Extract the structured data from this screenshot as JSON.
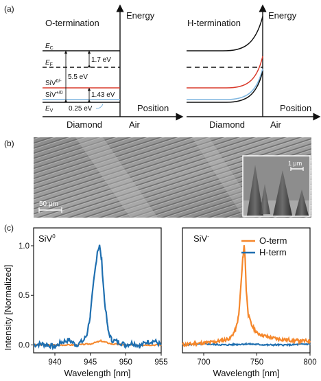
{
  "panels": {
    "a": "(a)",
    "b": "(b)",
    "c": "(c)"
  },
  "band_diagram": {
    "left": {
      "title": "O-termination",
      "energy_label": "Energy",
      "position_label": "Position",
      "diamond_label": "Diamond",
      "air_label": "Air",
      "levels": {
        "ec": "E",
        "ec_sub": "C",
        "ef": "E",
        "ef_sub": "F",
        "siv_minus": "SiV",
        "siv_minus_sup": "0/-",
        "siv_plus": "SiV",
        "siv_plus_sup": "+/0",
        "ev": "E",
        "ev_sub": "V"
      },
      "gaps": {
        "g1": "1.7 eV",
        "g2": "5.5 eV",
        "g3": "1.43 eV",
        "g4": "0.25 eV"
      }
    },
    "right": {
      "title": "H-termination",
      "energy_label": "Energy",
      "position_label": "Position",
      "diamond_label": "Diamond",
      "air_label": "Air"
    },
    "colors": {
      "siv_minus": "#d93a2b",
      "siv_plus": "#7fb6e0"
    }
  },
  "sem": {
    "scale_main": "50 μm",
    "scale_inset": "1 μm"
  },
  "spectra": {
    "ylabel": "Intensity [Normalized]",
    "colors": {
      "h_term": "#1f6fb0",
      "o_term": "#f5872b"
    },
    "left": {
      "label": "SiV",
      "label_sup": "0",
      "xlabel": "Wavelength [nm]",
      "xlim": [
        937,
        955
      ],
      "ylim": [
        -0.08,
        1.18
      ],
      "xticks": [
        940,
        945,
        950,
        955
      ],
      "yticks": [
        0.0,
        0.5,
        1.0
      ],
      "ytick_labels": [
        "0.0",
        "0.5",
        "1.0"
      ]
    },
    "right": {
      "label": "SiV",
      "label_sup": "-",
      "xlabel": "Wavelength [nm]",
      "xlim": [
        680,
        800
      ],
      "ylim": [
        -0.08,
        1.18
      ],
      "xticks": [
        700,
        750,
        800
      ],
      "legend": [
        "O-term",
        "H-term"
      ]
    }
  },
  "chart_data": [
    {
      "type": "line",
      "xlabel": "Wavelength [nm]",
      "ylabel": "Intensity [Normalized]",
      "xlim": [
        937,
        955
      ],
      "ylim": [
        -0.08,
        1.18
      ],
      "series": [
        {
          "x": [
            937,
            938,
            939,
            940,
            941,
            942,
            943,
            944,
            944.5,
            945,
            945.5,
            946,
            946.3,
            946.6,
            947,
            947.5,
            948,
            949,
            950,
            951,
            952,
            953,
            954,
            955
          ],
          "values": [
            0.0,
            0.01,
            0.0,
            -0.02,
            0.03,
            0.05,
            0.0,
            0.04,
            0.1,
            0.3,
            0.65,
            0.95,
            1.0,
            0.85,
            0.45,
            0.15,
            0.05,
            0.03,
            0.0,
            0.02,
            -0.01,
            0.03,
            0.04,
            0.0
          ]
        },
        {
          "x": [
            937,
            940,
            943,
            945,
            946,
            946.5,
            947,
            948,
            950,
            953,
            955
          ],
          "values": [
            0.0,
            0.0,
            0.0,
            0.01,
            0.03,
            0.04,
            0.03,
            0.01,
            0.0,
            0.0,
            0.0
          ]
        }
      ]
    },
    {
      "type": "line",
      "xlabel": "Wavelength [nm]",
      "xlim": [
        680,
        800
      ],
      "ylim": [
        -0.08,
        1.18
      ],
      "series": [
        {
          "name": "O-term",
          "x": [
            680,
            690,
            700,
            710,
            720,
            725,
            730,
            733,
            735,
            737,
            738,
            739,
            740,
            742,
            745,
            750,
            760,
            770,
            780,
            790,
            800
          ],
          "values": [
            0.0,
            0.01,
            0.02,
            0.03,
            0.05,
            0.07,
            0.15,
            0.3,
            0.6,
            0.9,
            1.0,
            0.88,
            0.55,
            0.3,
            0.2,
            0.12,
            0.08,
            0.06,
            0.05,
            0.04,
            0.04
          ]
        },
        {
          "name": "H-term",
          "x": [
            680,
            700,
            720,
            740,
            760,
            780,
            800
          ],
          "values": [
            0.0,
            0.01,
            0.0,
            0.01,
            0.0,
            0.0,
            0.01
          ]
        }
      ]
    }
  ]
}
